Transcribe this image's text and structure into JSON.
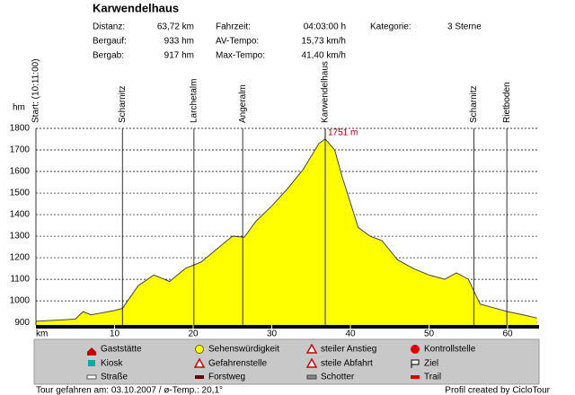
{
  "header": {
    "title": "Karwendelhaus",
    "stats": [
      {
        "label": "Distanz:",
        "value": "63,72 km"
      },
      {
        "label": "Bergauf:",
        "value": "933 hm"
      },
      {
        "label": "Bergab:",
        "value": "917 hm"
      },
      {
        "label": "Fahrzeit:",
        "value": "04:03:00 h"
      },
      {
        "label": "AV-Tempo:",
        "value": "15,73 km/h"
      },
      {
        "label": "Max-Tempo:",
        "value": "41,40 km/h"
      },
      {
        "label": "Kategorie:",
        "value": "3 Sterne"
      }
    ]
  },
  "chart_data": {
    "type": "area",
    "ylabel": "hm",
    "xlabel": "km",
    "color": "#ffff00",
    "xlim": [
      0,
      64
    ],
    "ylim": [
      888,
      1800
    ],
    "xticks": [
      10,
      20,
      30,
      40,
      50,
      60
    ],
    "yticks": [
      900,
      1000,
      1100,
      1200,
      1300,
      1400,
      1500,
      1600,
      1700,
      1800
    ],
    "grid": true,
    "annotation": "1751 m",
    "profile": {
      "x": [
        0,
        5,
        6,
        7,
        10,
        11,
        13,
        15,
        17,
        19,
        21,
        23,
        25,
        26.5,
        28,
        30,
        32,
        34,
        36,
        36.8,
        38,
        39,
        41,
        42.5,
        44,
        46,
        48,
        50,
        52,
        53.5,
        55,
        56.5,
        58,
        60,
        62,
        63.72
      ],
      "y": [
        905,
        915,
        950,
        935,
        955,
        965,
        1070,
        1120,
        1090,
        1150,
        1180,
        1240,
        1300,
        1295,
        1370,
        1440,
        1520,
        1610,
        1730,
        1751,
        1700,
        1570,
        1340,
        1300,
        1280,
        1190,
        1150,
        1120,
        1100,
        1130,
        1100,
        985,
        970,
        950,
        935,
        920
      ]
    },
    "waypoints": [
      {
        "label": "Start: (10:11:00)",
        "x": 0
      },
      {
        "label": "Scharnitz",
        "x": 11
      },
      {
        "label": "Larchetalm",
        "x": 20.1
      },
      {
        "label": "Angeralm",
        "x": 26.3
      },
      {
        "label": "Karwendelhaus",
        "x": 36.8
      },
      {
        "label": "Scharnitz",
        "x": 55.7
      },
      {
        "label": "Rietboden",
        "x": 59.9
      }
    ]
  },
  "legend": {
    "items": [
      "Gaststätte",
      "Sehenswürdigkeit",
      "steiler Anstieg",
      "Kontrollstelle",
      "Kiosk",
      "Gefahrenstelle",
      "steile Abfahrt",
      "Ziel",
      "Straße",
      "Forstweg",
      "Schotter",
      "Trail"
    ]
  },
  "footer": {
    "left": "Tour gefahren am: 03.10.2007 / ø-Temp.: 20,1°",
    "right": "Profil created by CicloTour"
  }
}
